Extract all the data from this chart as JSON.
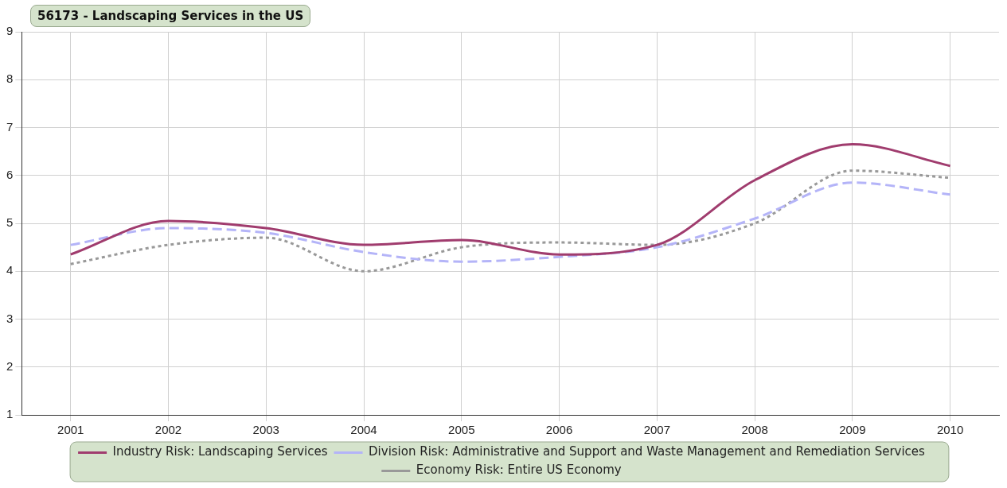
{
  "chart_data": {
    "type": "line",
    "title": "56173 - Landscaping Services in the US",
    "categories": [
      "2001",
      "2002",
      "2003",
      "2004",
      "2005",
      "2006",
      "2007",
      "2008",
      "2009",
      "2010"
    ],
    "series": [
      {
        "name": "Industry Risk: Landscaping Services",
        "color": "#a03c6e",
        "line_style": "solid",
        "values": [
          4.35,
          5.05,
          4.9,
          4.55,
          4.65,
          4.35,
          4.55,
          5.9,
          6.65,
          6.2
        ]
      },
      {
        "name": "Division Risk: Administrative and Support and Waste Management and Remediation Services",
        "color": "#b4b4f8",
        "line_style": "dashed",
        "values": [
          4.55,
          4.9,
          4.8,
          4.4,
          4.2,
          4.3,
          4.5,
          5.1,
          5.85,
          5.6
        ]
      },
      {
        "name": "Economy Risk: Entire US Economy",
        "color": "#999999",
        "line_style": "dotted",
        "values": [
          4.15,
          4.55,
          4.7,
          4.0,
          4.5,
          4.6,
          4.55,
          5.0,
          6.1,
          5.95
        ]
      }
    ],
    "ylim": [
      1,
      9
    ],
    "yticks": [
      1,
      2,
      3,
      4,
      5,
      6,
      7,
      8,
      9
    ],
    "grid": true,
    "legend": "bottom",
    "marker": "none"
  }
}
